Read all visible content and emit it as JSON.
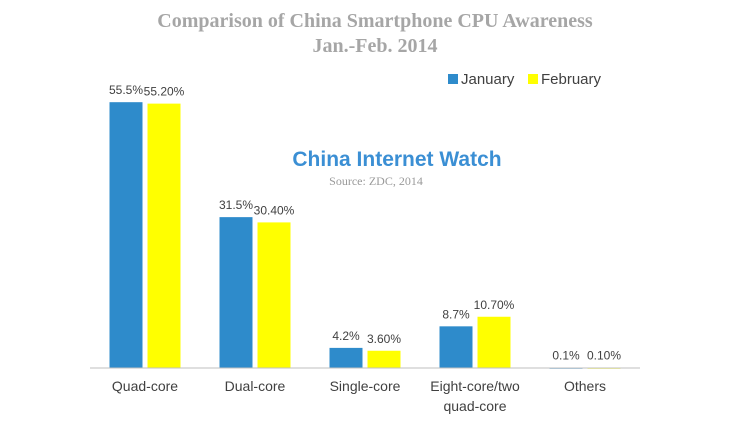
{
  "chart_data": {
    "type": "bar",
    "title": "Comparison of China Smartphone CPU Awareness",
    "subtitle": "Jan.-Feb. 2014",
    "categories": [
      [
        "Quad-core"
      ],
      [
        "Dual-core"
      ],
      [
        "Single-core"
      ],
      [
        "Eight-core/two",
        "quad-core"
      ],
      [
        "Others"
      ]
    ],
    "series": [
      {
        "name": "January",
        "color": "#2e8bcb",
        "values": [
          55.5,
          31.5,
          4.2,
          8.7,
          0.1
        ],
        "labels": [
          "55.5%",
          "31.5%",
          "4.2%",
          "8.7%",
          "0.1%"
        ]
      },
      {
        "name": "February",
        "color": "#ffff00",
        "values": [
          55.2,
          30.4,
          3.6,
          10.7,
          0.1
        ],
        "labels": [
          "55.20%",
          "30.40%",
          "3.60%",
          "10.70%",
          "0.10%"
        ]
      }
    ],
    "ylim": [
      0,
      57
    ],
    "grid": false,
    "legend_position": "top-right",
    "axis_color": "#bfbfbf"
  },
  "watermark": {
    "brand": "China Internet Watch",
    "source": "Source: ZDC, 2014"
  }
}
